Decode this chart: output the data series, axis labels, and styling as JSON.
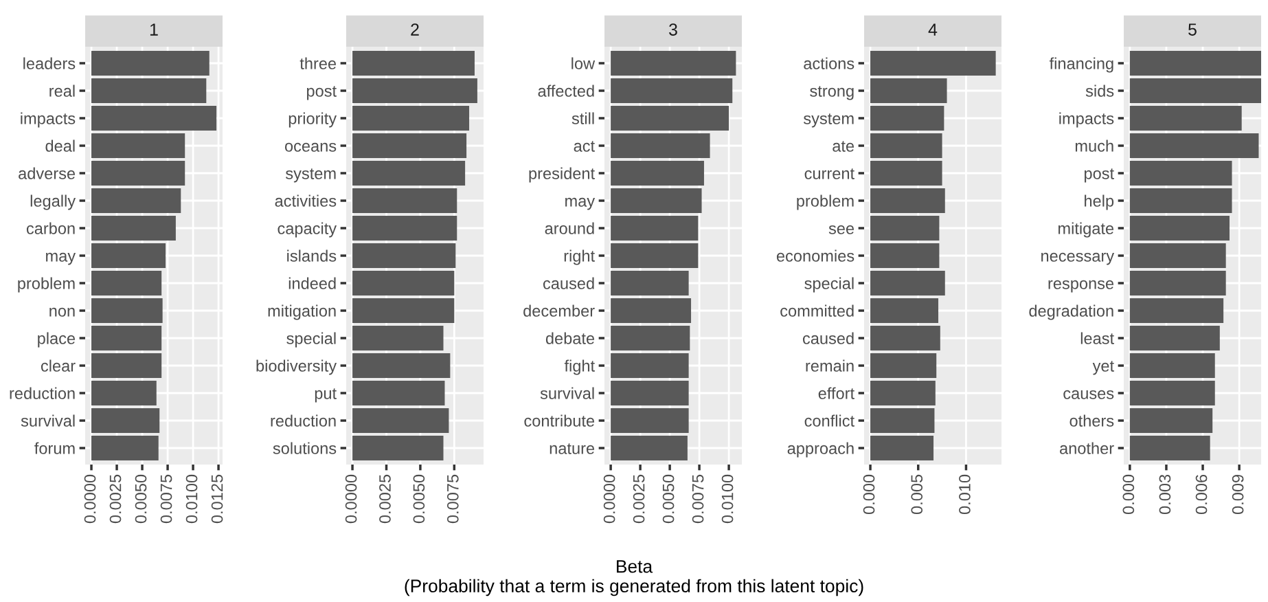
{
  "chart_data": [
    {
      "type": "bar",
      "orientation": "horizontal",
      "title": "1",
      "color": "#595959",
      "grid": true,
      "categories": [
        "leaders",
        "real",
        "impacts",
        "deal",
        "adverse",
        "legally",
        "carbon",
        "may",
        "problem",
        "non",
        "place",
        "clear",
        "reduction",
        "survival",
        "forum"
      ],
      "values": [
        0.0116,
        0.0113,
        0.0123,
        0.0092,
        0.0092,
        0.0088,
        0.0083,
        0.0073,
        0.0069,
        0.007,
        0.0069,
        0.0069,
        0.0064,
        0.0067,
        0.0066
      ],
      "xlim": [
        -0.00061,
        0.0129
      ],
      "xticks": [
        {
          "value": 0,
          "label": "0.0000"
        },
        {
          "value": 0.0025,
          "label": "0.0025"
        },
        {
          "value": 0.005,
          "label": "0.0050"
        },
        {
          "value": 0.0075,
          "label": "0.0075"
        },
        {
          "value": 0.01,
          "label": "0.0100"
        },
        {
          "value": 0.0125,
          "label": "0.0125"
        }
      ]
    },
    {
      "type": "bar",
      "orientation": "horizontal",
      "title": "2",
      "color": "#595959",
      "grid": true,
      "categories": [
        "three",
        "post",
        "priority",
        "oceans",
        "system",
        "activities",
        "capacity",
        "islands",
        "indeed",
        "mitigation",
        "special",
        "biodiversity",
        "put",
        "reduction",
        "solutions"
      ],
      "values": [
        0.009,
        0.0092,
        0.0086,
        0.0084,
        0.0083,
        0.0077,
        0.0077,
        0.0076,
        0.0075,
        0.0075,
        0.0067,
        0.0072,
        0.0068,
        0.0071,
        0.0067
      ],
      "xlim": [
        -0.00046,
        0.00966
      ],
      "xticks": [
        {
          "value": 0,
          "label": "0.0000"
        },
        {
          "value": 0.0025,
          "label": "0.0025"
        },
        {
          "value": 0.005,
          "label": "0.0050"
        },
        {
          "value": 0.0075,
          "label": "0.0075"
        }
      ]
    },
    {
      "type": "bar",
      "orientation": "horizontal",
      "title": "3",
      "color": "#595959",
      "grid": true,
      "xlabel": "Beta\n(Probability that a term is generated from this latent topic)",
      "categories": [
        "low",
        "affected",
        "still",
        "act",
        "president",
        "may",
        "around",
        "right",
        "caused",
        "december",
        "debate",
        "fight",
        "survival",
        "contribute",
        "nature"
      ],
      "values": [
        0.0106,
        0.0103,
        0.01,
        0.0084,
        0.0079,
        0.0077,
        0.0074,
        0.0074,
        0.0066,
        0.0068,
        0.0067,
        0.0066,
        0.0066,
        0.0066,
        0.0065
      ],
      "xlim": [
        -0.00053,
        0.0111
      ],
      "xticks": [
        {
          "value": 0,
          "label": "0.0000"
        },
        {
          "value": 0.0025,
          "label": "0.0025"
        },
        {
          "value": 0.005,
          "label": "0.0050"
        },
        {
          "value": 0.0075,
          "label": "0.0075"
        },
        {
          "value": 0.01,
          "label": "0.0100"
        }
      ]
    },
    {
      "type": "bar",
      "orientation": "horizontal",
      "title": "4",
      "color": "#595959",
      "grid": true,
      "categories": [
        "actions",
        "strong",
        "system",
        "ate",
        "current",
        "problem",
        "see",
        "economies",
        "special",
        "committed",
        "caused",
        "remain",
        "effort",
        "conflict",
        "approach"
      ],
      "values": [
        0.0131,
        0.008,
        0.0077,
        0.0075,
        0.0075,
        0.0078,
        0.0072,
        0.0072,
        0.0078,
        0.0071,
        0.0073,
        0.0069,
        0.0068,
        0.0067,
        0.0066
      ],
      "xlim": [
        -0.00065,
        0.0137
      ],
      "xticks": [
        {
          "value": 0,
          "label": "0.000"
        },
        {
          "value": 0.005,
          "label": "0.005"
        },
        {
          "value": 0.01,
          "label": "0.010"
        }
      ]
    },
    {
      "type": "bar",
      "orientation": "horizontal",
      "title": "5",
      "color": "#595959",
      "grid": true,
      "categories": [
        "financing",
        "sids",
        "impacts",
        "much",
        "post",
        "help",
        "mitigate",
        "necessary",
        "response",
        "degradation",
        "least",
        "yet",
        "causes",
        "others",
        "another"
      ],
      "values": [
        0.0108,
        0.0108,
        0.0092,
        0.0106,
        0.0084,
        0.0084,
        0.0082,
        0.0079,
        0.0079,
        0.0077,
        0.0074,
        0.007,
        0.007,
        0.0068,
        0.0066
      ],
      "xlim": [
        -0.0005,
        0.0108
      ],
      "xticks": [
        {
          "value": 0,
          "label": "0.000"
        },
        {
          "value": 0.003,
          "label": "0.003"
        },
        {
          "value": 0.006,
          "label": "0.006"
        },
        {
          "value": 0.009,
          "label": "0.009"
        }
      ]
    }
  ]
}
